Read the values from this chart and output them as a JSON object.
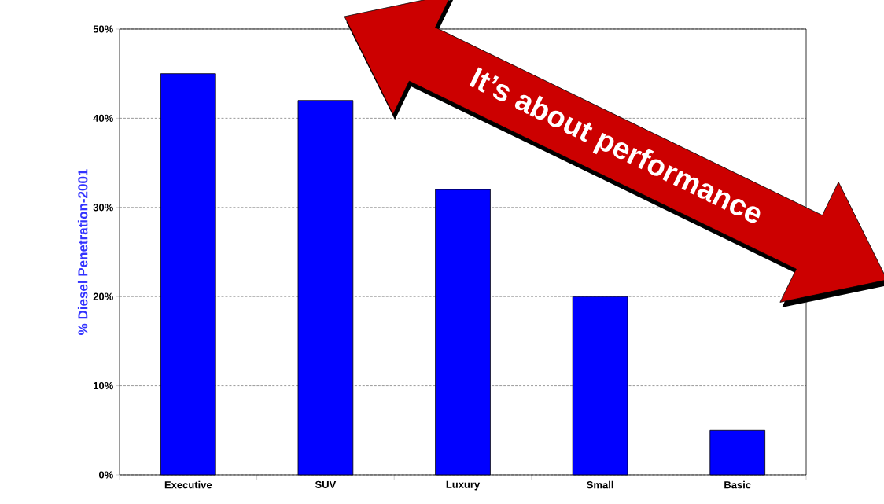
{
  "chart_data": {
    "type": "bar",
    "ylabel": "% Diesel Penetration-2001",
    "categories": [
      "Executive",
      "SUV",
      "Luxury",
      "Small",
      "Basic"
    ],
    "values": [
      45,
      42,
      32,
      20,
      5
    ],
    "color": "#0000ff",
    "ylim": [
      0,
      50
    ],
    "yticks": [
      {
        "value": 0,
        "label": "0%"
      },
      {
        "value": 10,
        "label": "10%"
      },
      {
        "value": 20,
        "label": "20%"
      },
      {
        "value": 30,
        "label": "30%"
      },
      {
        "value": 40,
        "label": "40%"
      },
      {
        "value": 50,
        "label": "50%"
      }
    ],
    "grid": "y",
    "annotations": [
      "It’s about performance"
    ]
  }
}
